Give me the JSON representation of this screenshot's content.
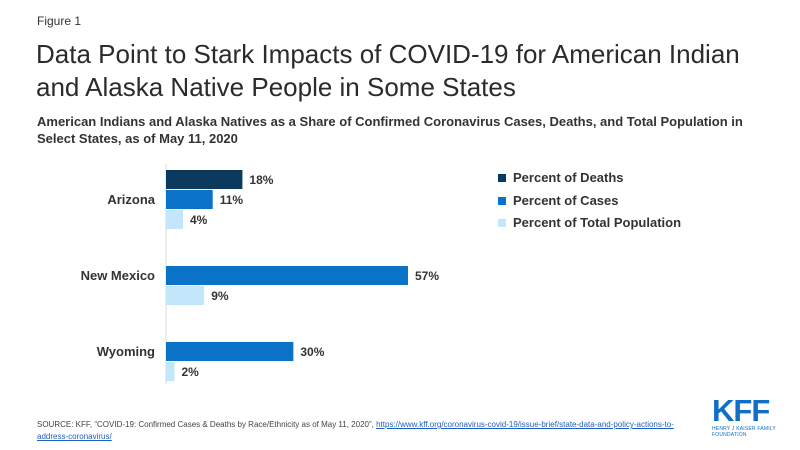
{
  "figure_label": "Figure 1",
  "title": "Data Point to Stark Impacts of COVID-19 for American Indian and Alaska Native People in Some States",
  "subtitle": "American Indians and Alaska Natives as a Share of Confirmed Coronavirus Cases, Deaths, and Total Population in Select States, as of May 11, 2020",
  "chart_data": {
    "type": "bar",
    "orientation": "horizontal",
    "grid": false,
    "legend_position": "right",
    "categories": [
      "Arizona",
      "New Mexico",
      "Wyoming"
    ],
    "series": [
      {
        "name": "Percent of Deaths",
        "color": "#0b3a5e",
        "values": [
          18,
          null,
          null
        ],
        "labels": [
          "18%",
          null,
          null
        ]
      },
      {
        "name": "Percent of Cases",
        "color": "#0a73c7",
        "values": [
          11,
          57,
          30
        ],
        "labels": [
          "11%",
          "57%",
          "30%"
        ]
      },
      {
        "name": "Percent of Total Population",
        "color": "#c3e6fb",
        "values": [
          4,
          9,
          2
        ],
        "labels": [
          "4%",
          "9%",
          "2%"
        ]
      }
    ],
    "xlim": [
      0,
      60
    ]
  },
  "source": {
    "text": "SOURCE: KFF, “COVID-19: Confirmed Cases & Deaths by Race/Ethnicity as of May 11, 2020”,",
    "link": "https://www.kff.org/coronavirus-covid-19/issue-brief/state-data-and-policy-actions-to-address-coronavirus/"
  },
  "logo": {
    "mark": "KFF",
    "sub": "HENRY J KAISER FAMILY FOUNDATION",
    "color": "#0f6ec7"
  }
}
